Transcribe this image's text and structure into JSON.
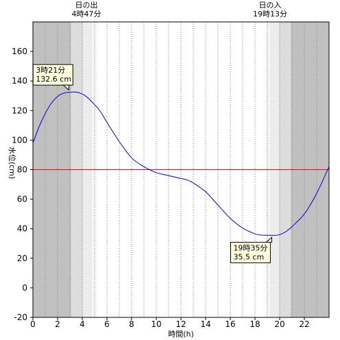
{
  "chart_data": {
    "type": "line",
    "xlabel": "時間(h)",
    "ylabel": "水位(cm)",
    "xlim": [
      0,
      24
    ],
    "ylim": [
      -20,
      180
    ],
    "x_ticks": [
      0,
      2,
      4,
      6,
      8,
      10,
      12,
      14,
      16,
      18,
      20,
      22
    ],
    "y_ticks": [
      -20,
      0,
      20,
      40,
      60,
      80,
      100,
      120,
      140,
      160
    ],
    "grid": "vertical dotted every hour",
    "reference_line": {
      "y": 80,
      "color": "#ff0000"
    },
    "series": [
      {
        "color": "#0000cc",
        "x": [
          0,
          0.5,
          1,
          1.5,
          2,
          2.5,
          3,
          3.35,
          3.75,
          4.25,
          5,
          5.5,
          6,
          7,
          8,
          9,
          10,
          11,
          12,
          12.5,
          13,
          14,
          15,
          16,
          17,
          18,
          18.5,
          19,
          19.58,
          20,
          20.5,
          21,
          22,
          23,
          24
        ],
        "y": [
          98,
          109,
          118,
          125,
          129.5,
          131.8,
          132.4,
          132.6,
          132,
          130,
          124,
          119,
          112,
          99,
          88,
          82,
          78,
          76,
          74,
          73,
          71,
          65,
          56,
          47,
          40.5,
          36.5,
          35.7,
          35.6,
          35.5,
          36,
          38,
          41.5,
          50,
          64,
          82
        ]
      }
    ],
    "sunrise": {
      "label": "日の出",
      "time": "4時47分",
      "hour": 4.78
    },
    "sunset": {
      "label": "日の入",
      "time": "19時13分",
      "hour": 19.22
    },
    "night_shading": {
      "dark_color": "#c0c0c0",
      "mid_color": "#dcdcdc",
      "light_color": "#ececec",
      "morning_bands": [
        [
          0,
          3.1,
          "dark"
        ],
        [
          3.1,
          4.05,
          "mid"
        ],
        [
          4.05,
          4.78,
          "light"
        ],
        [
          4.78,
          5.2,
          "lighter"
        ]
      ],
      "evening_bands": [
        [
          18.85,
          19.22,
          "lighter"
        ],
        [
          19.22,
          19.95,
          "light"
        ],
        [
          19.95,
          20.9,
          "mid"
        ],
        [
          20.9,
          24,
          "dark"
        ]
      ]
    },
    "annotations": [
      {
        "name": "high",
        "time": "3時21分",
        "value": "132.6 cm",
        "x": 3.35,
        "y": 132.6,
        "anchor": "above-left"
      },
      {
        "name": "low",
        "time": "19時35分",
        "value": "35.5 cm",
        "x": 19.58,
        "y": 35.5,
        "anchor": "below-left"
      }
    ]
  }
}
